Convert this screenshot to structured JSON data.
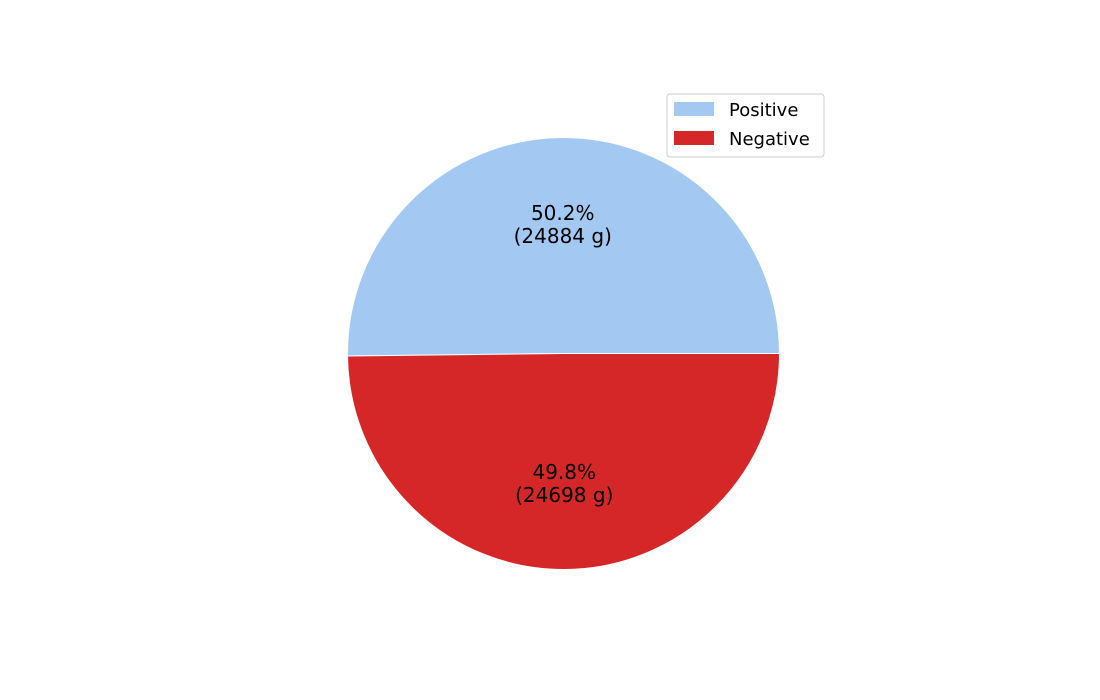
{
  "chart_data": {
    "type": "pie",
    "unit": "g",
    "slices": [
      {
        "label": "Positive",
        "value": 24884,
        "percent_label": "50.2%",
        "value_label": "(24884 g)",
        "color": "#a3c9f3"
      },
      {
        "label": "Negative",
        "value": 24698,
        "percent_label": "49.8%",
        "value_label": "(24698 g)",
        "color": "#d62728"
      }
    ],
    "legend": {
      "placement": "top-right",
      "entries": [
        "Positive",
        "Negative"
      ]
    }
  }
}
